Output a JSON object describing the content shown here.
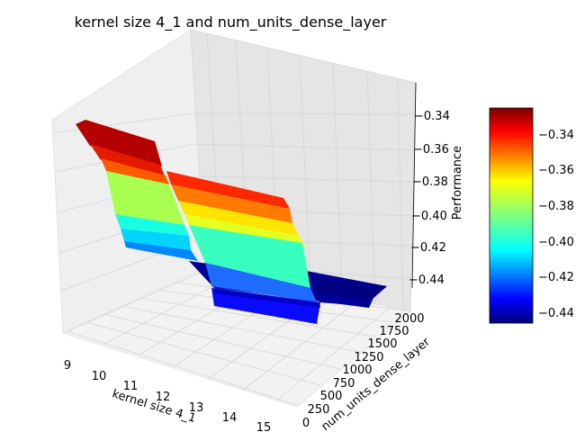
{
  "chart_data": {
    "type": "surface",
    "title": "kernel size 4_1 and num_units_dense_layer",
    "xlabel": "kernel size 4_1",
    "ylabel": "num_units_dense_layer",
    "zlabel": "Performance",
    "xlim": [
      8.8,
      15.2
    ],
    "ylim": [
      0,
      2100
    ],
    "zlim": [
      -0.452,
      -0.328
    ],
    "x_ticks": [
      "9",
      "10",
      "11",
      "12",
      "13",
      "14",
      "15"
    ],
    "y_ticks": [
      "0",
      "250",
      "500",
      "750",
      "1000",
      "1250",
      "1500",
      "1750",
      "2000"
    ],
    "z_ticks": [
      "−0.34",
      "−0.36",
      "−0.38",
      "−0.40",
      "−0.42",
      "−0.44"
    ],
    "colorbar": {
      "colormap": "jet",
      "range": [
        -0.447,
        -0.33
      ],
      "ticks": [
        "−0.44",
        "−0.42",
        "−0.40",
        "−0.38",
        "−0.36",
        "−0.34"
      ]
    },
    "grid": true,
    "surface_steps": [
      {
        "x_from": 9.0,
        "x_to": 10.0,
        "y_from": 1500,
        "y_to": 2100,
        "z": -0.338
      },
      {
        "x_from": 10.0,
        "x_to": 11.0,
        "y_from": 1500,
        "y_to": 2100,
        "z": -0.355
      },
      {
        "x_from": 11.0,
        "x_to": 12.0,
        "y_from": 1500,
        "y_to": 2100,
        "z": -0.383
      },
      {
        "x_from": 11.8,
        "x_to": 12.6,
        "y_from": 1500,
        "y_to": 2100,
        "z": -0.408
      },
      {
        "x_from": 12.6,
        "x_to": 13.0,
        "y_from": 1500,
        "y_to": 2100,
        "z": -0.428
      },
      {
        "x_from": 11.0,
        "x_to": 12.0,
        "y_from": 0,
        "y_to": 1500,
        "z": -0.366
      },
      {
        "x_from": 12.0,
        "x_to": 13.0,
        "y_from": 0,
        "y_to": 1500,
        "z": -0.378
      },
      {
        "x_from": 13.0,
        "x_to": 14.0,
        "y_from": 0,
        "y_to": 1500,
        "z": -0.405
      },
      {
        "x_from": 14.0,
        "x_to": 15.0,
        "y_from": 0,
        "y_to": 1500,
        "z": -0.432
      },
      {
        "x_from": 15.0,
        "x_to": 15.2,
        "y_from": 0,
        "y_to": 2100,
        "z": -0.447
      }
    ]
  }
}
